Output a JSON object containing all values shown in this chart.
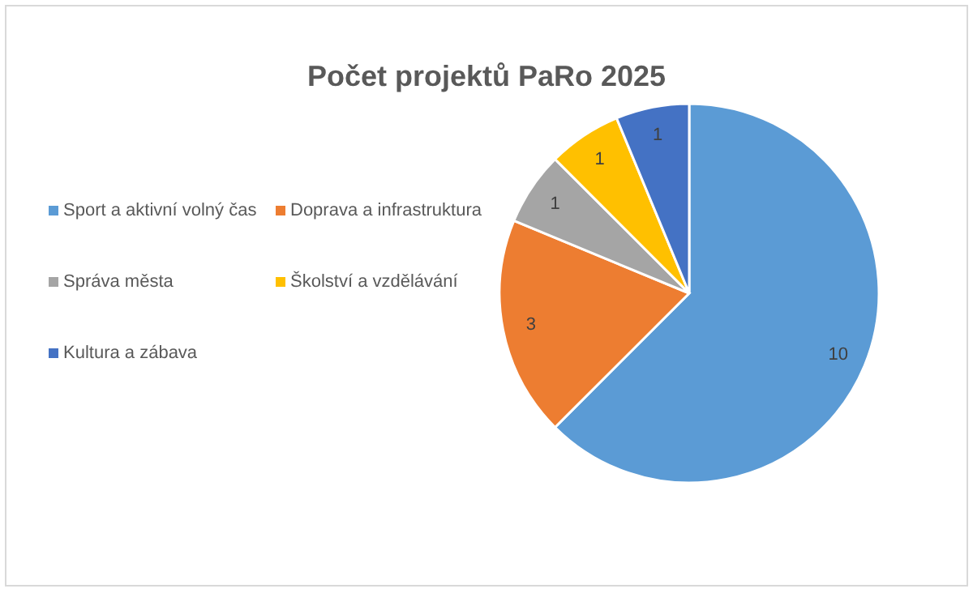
{
  "chart_data": {
    "type": "pie",
    "title": "Počet projektů PaRo 2025",
    "categories": [
      "Sport a aktivní volný čas",
      "Doprava a infrastruktura",
      "Správa města",
      "Školství a vzdělávání",
      "Kultura a zábava"
    ],
    "values": [
      10,
      3,
      1,
      1,
      1
    ],
    "colors": [
      "#5b9bd5",
      "#ed7d31",
      "#a5a5a5",
      "#ffc000",
      "#4472c4"
    ],
    "data_labels": true,
    "legend": "left"
  }
}
